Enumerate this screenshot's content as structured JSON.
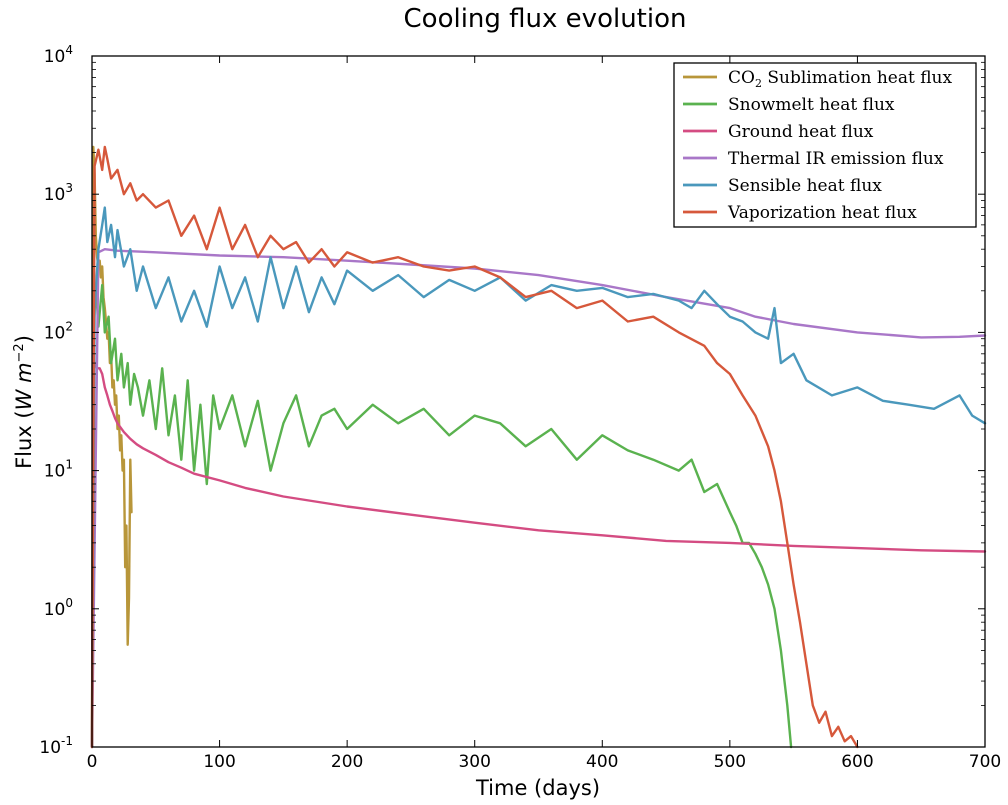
{
  "chart_data": {
    "type": "line",
    "title": "Cooling flux evolution",
    "xlabel": "Time (days)",
    "ylabel": {
      "base": "Flux (",
      "var": "W m",
      "exp": "−2",
      "close": ")"
    },
    "xlim": [
      0,
      700
    ],
    "ylim": [
      0.1,
      10000
    ],
    "yscale": "log",
    "grid": false,
    "legend_position": "top-right",
    "x_ticks": [
      "0",
      "100",
      "200",
      "300",
      "400",
      "500",
      "600",
      "700"
    ],
    "x_tick_values": [
      0,
      100,
      200,
      300,
      400,
      500,
      600,
      700
    ],
    "y_ticks": [
      {
        "value": 0.1,
        "base": "10",
        "exp": "-1"
      },
      {
        "value": 1,
        "base": "10",
        "exp": "0"
      },
      {
        "value": 10,
        "base": "10",
        "exp": "1"
      },
      {
        "value": 100,
        "base": "10",
        "exp": "2"
      },
      {
        "value": 1000,
        "base": "10",
        "exp": "3"
      },
      {
        "value": 10000,
        "base": "10",
        "exp": "4"
      }
    ],
    "series": [
      {
        "name": "CO₂ Sublimation heat flux",
        "legend_parts": {
          "pre": "CO",
          "sub": "2",
          "post": " Sublimation heat flux"
        },
        "color": "#b8963a",
        "x": [
          0,
          1,
          2,
          3,
          4,
          5,
          6,
          7,
          8,
          9,
          10,
          11,
          12,
          13,
          14,
          15,
          16,
          17,
          18,
          19,
          20,
          21,
          22,
          23,
          24,
          25,
          26,
          27,
          28,
          29,
          30,
          31
        ],
        "y": [
          0.1,
          2200,
          1400,
          500,
          350,
          300,
          330,
          250,
          300,
          180,
          150,
          120,
          90,
          100,
          60,
          70,
          40,
          45,
          30,
          35,
          20,
          25,
          14,
          18,
          10,
          12,
          2,
          4,
          0.55,
          1.2,
          12,
          5
        ]
      },
      {
        "name": "Snowmelt heat flux",
        "color": "#5ab24f",
        "x": [
          0,
          1,
          3,
          5,
          8,
          10,
          13,
          15,
          18,
          20,
          23,
          25,
          28,
          30,
          33,
          36,
          40,
          45,
          50,
          55,
          60,
          65,
          70,
          75,
          80,
          85,
          90,
          95,
          100,
          110,
          120,
          130,
          140,
          150,
          160,
          170,
          180,
          190,
          200,
          220,
          240,
          260,
          280,
          300,
          320,
          340,
          360,
          380,
          400,
          420,
          440,
          460,
          470,
          480,
          490,
          500,
          505,
          510,
          515,
          520,
          525,
          530,
          535,
          540,
          545,
          548
        ],
        "y": [
          0.1,
          90,
          220,
          110,
          220,
          100,
          130,
          60,
          90,
          45,
          70,
          40,
          60,
          30,
          50,
          40,
          25,
          45,
          20,
          55,
          18,
          35,
          12,
          45,
          10,
          30,
          8,
          35,
          20,
          35,
          15,
          32,
          10,
          22,
          35,
          15,
          25,
          28,
          20,
          30,
          22,
          28,
          18,
          25,
          22,
          15,
          20,
          12,
          18,
          14,
          12,
          10,
          12,
          7,
          8,
          5,
          4,
          3,
          3,
          2.5,
          2,
          1.5,
          1,
          0.5,
          0.2,
          0.1
        ]
      },
      {
        "name": "Ground heat flux",
        "color": "#d44c82",
        "x": [
          0,
          1,
          2,
          4,
          6,
          8,
          10,
          12,
          14,
          16,
          18,
          20,
          25,
          30,
          35,
          40,
          50,
          60,
          70,
          80,
          100,
          120,
          150,
          200,
          250,
          300,
          350,
          400,
          450,
          500,
          550,
          600,
          650,
          700
        ],
        "y": [
          0.1,
          70,
          60,
          55,
          55,
          50,
          40,
          35,
          30,
          27,
          24,
          22,
          19,
          17,
          15.5,
          14.5,
          13,
          11.5,
          10.5,
          9.5,
          8.5,
          7.5,
          6.5,
          5.5,
          4.8,
          4.2,
          3.7,
          3.4,
          3.1,
          3.0,
          2.85,
          2.75,
          2.65,
          2.6
        ]
      },
      {
        "name": "Thermal IR emission flux",
        "color": "#a977c8",
        "x": [
          0,
          5,
          10,
          20,
          50,
          100,
          150,
          200,
          250,
          300,
          350,
          400,
          450,
          500,
          520,
          550,
          600,
          650,
          680,
          700
        ],
        "y": [
          0.1,
          380,
          400,
          390,
          380,
          360,
          350,
          330,
          310,
          290,
          260,
          220,
          180,
          150,
          130,
          115,
          100,
          92,
          93,
          95
        ]
      },
      {
        "name": "Sensible heat flux",
        "color": "#4a98bc",
        "x": [
          0,
          2,
          5,
          8,
          10,
          12,
          15,
          18,
          20,
          25,
          30,
          35,
          40,
          50,
          60,
          70,
          80,
          90,
          100,
          110,
          120,
          130,
          140,
          150,
          160,
          170,
          180,
          190,
          200,
          220,
          240,
          260,
          280,
          300,
          320,
          340,
          360,
          380,
          400,
          420,
          440,
          460,
          470,
          480,
          490,
          500,
          510,
          520,
          530,
          535,
          540,
          550,
          560,
          580,
          600,
          620,
          640,
          660,
          680,
          690,
          700
        ],
        "y": [
          0.1,
          150,
          400,
          600,
          800,
          450,
          600,
          350,
          550,
          300,
          400,
          200,
          300,
          150,
          250,
          120,
          200,
          110,
          300,
          150,
          250,
          120,
          350,
          150,
          300,
          140,
          250,
          160,
          280,
          200,
          260,
          180,
          240,
          200,
          250,
          170,
          220,
          200,
          210,
          180,
          190,
          170,
          150,
          200,
          160,
          130,
          120,
          100,
          90,
          150,
          60,
          70,
          45,
          35,
          40,
          32,
          30,
          28,
          35,
          25,
          22
        ]
      },
      {
        "name": "Vaporization heat flux",
        "color": "#d6583b",
        "x": [
          0,
          2,
          5,
          8,
          10,
          12,
          15,
          20,
          25,
          30,
          35,
          40,
          50,
          60,
          70,
          80,
          90,
          100,
          110,
          120,
          130,
          140,
          150,
          160,
          170,
          180,
          190,
          200,
          220,
          240,
          260,
          280,
          300,
          320,
          340,
          360,
          380,
          400,
          420,
          440,
          460,
          480,
          490,
          500,
          510,
          520,
          530,
          535,
          540,
          545,
          550,
          555,
          560,
          565,
          570,
          575,
          580,
          585,
          590,
          595,
          600
        ],
        "y": [
          0.1,
          1600,
          2100,
          1500,
          2200,
          1800,
          1300,
          1500,
          1000,
          1200,
          900,
          1000,
          800,
          900,
          500,
          700,
          400,
          800,
          400,
          600,
          350,
          500,
          400,
          450,
          320,
          400,
          300,
          380,
          320,
          350,
          300,
          280,
          300,
          250,
          180,
          200,
          150,
          170,
          120,
          130,
          100,
          80,
          60,
          50,
          35,
          25,
          15,
          10,
          6,
          3,
          1.5,
          0.8,
          0.4,
          0.2,
          0.15,
          0.18,
          0.12,
          0.14,
          0.11,
          0.12,
          0.1
        ]
      }
    ]
  }
}
